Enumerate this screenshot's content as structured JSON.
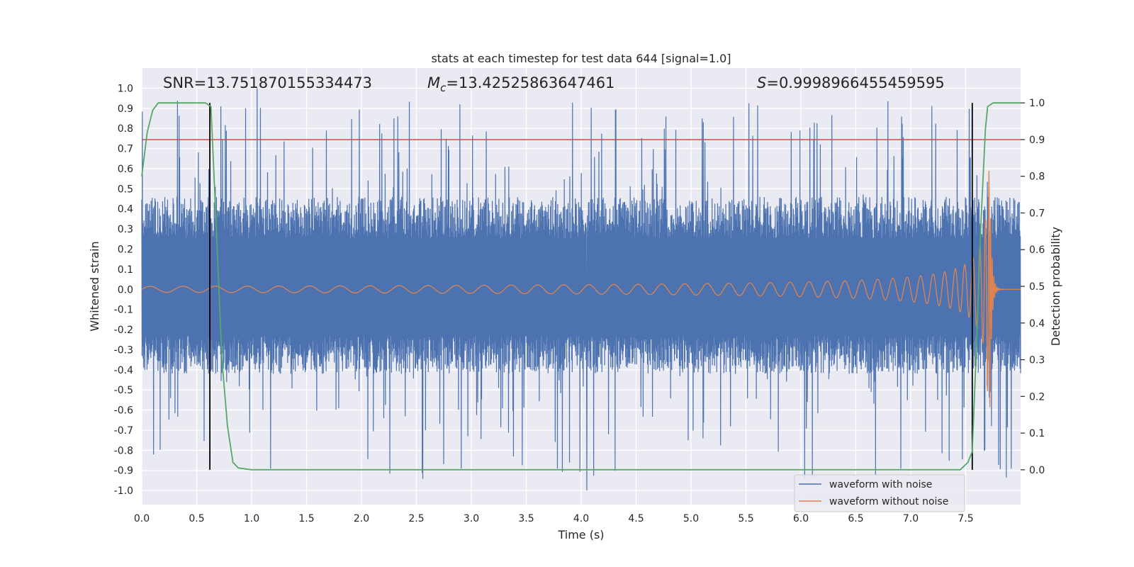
{
  "chart_data": {
    "type": "line",
    "title": "stats at each timestep for test data 644 [signal=1.0]",
    "xlabel": "Time (s)",
    "ylabel": "Whitened strain",
    "y2label": "Detection probability",
    "xlim": [
      0.0,
      8.0
    ],
    "ylim": [
      -1.07,
      1.1
    ],
    "y2lim": [
      -0.095,
      1.095
    ],
    "x_ticks": [
      "0.0",
      "0.5",
      "1.0",
      "1.5",
      "2.0",
      "2.5",
      "3.0",
      "3.5",
      "4.0",
      "4.5",
      "5.0",
      "5.5",
      "6.0",
      "6.5",
      "7.0",
      "7.5"
    ],
    "y_ticks": [
      "1.0",
      "0.9",
      "0.8",
      "0.7",
      "0.6",
      "0.5",
      "0.4",
      "0.3",
      "0.2",
      "0.1",
      "0.0",
      "-0.1",
      "-0.2",
      "-0.3",
      "-0.4",
      "-0.5",
      "-0.6",
      "-0.7",
      "-0.8",
      "-0.9",
      "-1.0"
    ],
    "y2_ticks": [
      "1.0",
      "0.9",
      "0.8",
      "0.7",
      "0.6",
      "0.5",
      "0.4",
      "0.3",
      "0.2",
      "0.1",
      "0.0"
    ],
    "annotations": {
      "snr": "SNR=13.751870155334473",
      "mc_symbol": "M",
      "mc_sub": "c",
      "mc_value": "=13.42525863647461",
      "s_symbol": "S",
      "s_value": "=0.9998966455459595"
    },
    "threshold": {
      "axis": "y2",
      "value": 0.9,
      "color": "#c44e52"
    },
    "vlines": [
      0.62,
      7.56
    ],
    "series": [
      {
        "name": "waveform with noise",
        "color": "#4c72b0",
        "envelope_pos": 0.46,
        "envelope_neg": -0.42,
        "spike_max": 1.0,
        "spike_min": -1.0
      },
      {
        "name": "waveform without noise",
        "color": "#dd8452",
        "t_merger": 7.72,
        "amp_start": 0.015,
        "amp_peak": 0.59
      },
      {
        "name": "detection probability",
        "axis": "y2",
        "color": "#55a868",
        "t": [
          0.0,
          0.05,
          0.1,
          0.15,
          0.2,
          0.3,
          0.4,
          0.5,
          0.58,
          0.63,
          0.68,
          0.73,
          0.78,
          0.83,
          0.88,
          1.0,
          7.45,
          7.52,
          7.56,
          7.6,
          7.64,
          7.68,
          7.7,
          7.75,
          7.85,
          8.0
        ],
        "p": [
          0.8,
          0.92,
          0.98,
          1.0,
          1.0,
          1.0,
          1.0,
          1.0,
          1.0,
          0.99,
          0.65,
          0.3,
          0.12,
          0.02,
          0.005,
          0.0,
          0.0,
          0.02,
          0.05,
          0.35,
          0.68,
          0.93,
          0.99,
          1.0,
          1.0,
          1.0
        ]
      }
    ],
    "legend": {
      "position": "bottom-right",
      "entries": [
        "waveform with noise",
        "waveform without noise"
      ]
    },
    "grid": true
  },
  "colors": {
    "plot_bg": "#eaeaf2",
    "grid": "#ffffff",
    "noise": "#4c72b0",
    "clean": "#dd8452",
    "prob": "#55a868",
    "threshold": "#c44e52",
    "vline": "#000000"
  }
}
